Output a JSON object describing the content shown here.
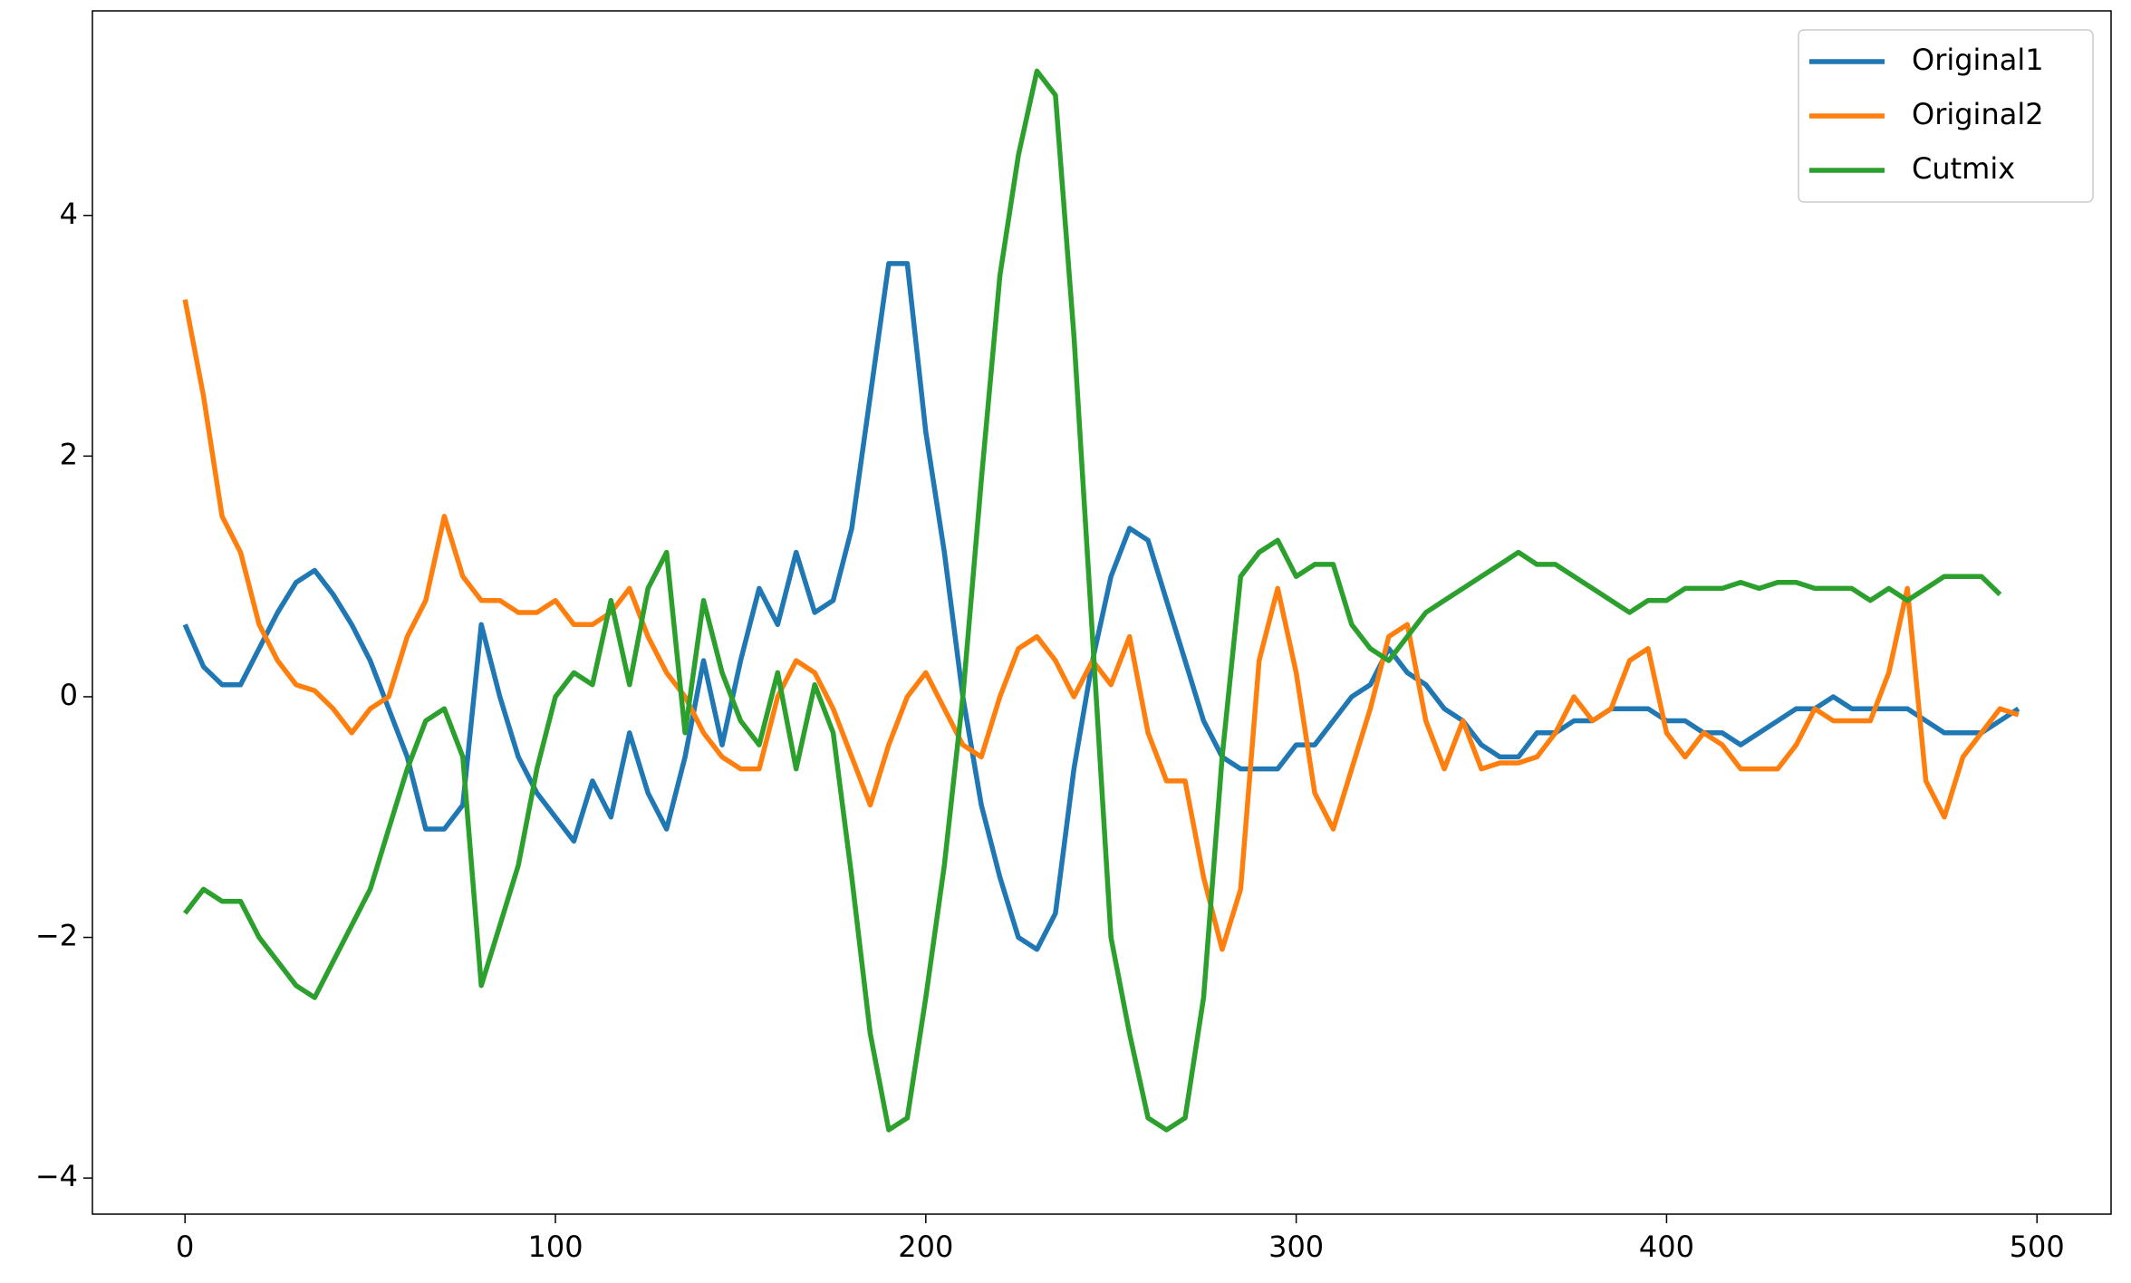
{
  "chart_data": {
    "type": "line",
    "x": [
      0,
      5,
      10,
      15,
      20,
      25,
      30,
      35,
      40,
      45,
      50,
      55,
      60,
      65,
      70,
      75,
      80,
      85,
      90,
      95,
      100,
      105,
      110,
      115,
      120,
      125,
      130,
      135,
      140,
      145,
      150,
      155,
      160,
      165,
      170,
      175,
      180,
      185,
      190,
      195,
      200,
      205,
      210,
      215,
      220,
      225,
      230,
      235,
      240,
      245,
      250,
      255,
      260,
      265,
      270,
      275,
      280,
      285,
      290,
      295,
      300,
      305,
      310,
      315,
      320,
      325,
      330,
      335,
      340,
      345,
      350,
      355,
      360,
      365,
      370,
      375,
      380,
      385,
      390,
      395,
      400,
      405,
      410,
      415,
      420,
      425,
      430,
      435,
      440,
      445,
      450,
      455,
      460,
      465,
      470,
      475,
      480,
      485,
      490,
      495
    ],
    "series": [
      {
        "name": "Original1",
        "color": "#1f77b4",
        "values": [
          0.6,
          0.25,
          0.1,
          0.1,
          0.4,
          0.7,
          0.95,
          1.05,
          0.85,
          0.6,
          0.3,
          -0.1,
          -0.5,
          -1.1,
          -1.1,
          -0.9,
          0.6,
          0.0,
          -0.5,
          -0.8,
          -1.0,
          -1.2,
          -0.7,
          -1.0,
          -0.3,
          -0.8,
          -1.1,
          -0.5,
          0.3,
          -0.4,
          0.3,
          0.9,
          0.6,
          1.2,
          0.7,
          0.8,
          1.4,
          2.5,
          3.6,
          3.6,
          2.2,
          1.2,
          0.0,
          -0.9,
          -1.5,
          -2.0,
          -2.1,
          -1.8,
          -0.6,
          0.3,
          1.0,
          1.4,
          1.3,
          0.8,
          0.3,
          -0.2,
          -0.5,
          -0.6,
          -0.6,
          -0.6,
          -0.4,
          -0.4,
          -0.2,
          0.0,
          0.1,
          0.4,
          0.2,
          0.1,
          -0.1,
          -0.2,
          -0.4,
          -0.5,
          -0.5,
          -0.3,
          -0.3,
          -0.2,
          -0.2,
          -0.1,
          -0.1,
          -0.1,
          -0.2,
          -0.2,
          -0.3,
          -0.3,
          -0.4,
          -0.3,
          -0.2,
          -0.1,
          -0.1,
          0.0,
          -0.1,
          -0.1,
          -0.1,
          -0.1,
          -0.2,
          -0.3,
          -0.3,
          -0.3,
          -0.2,
          -0.1
        ]
      },
      {
        "name": "Original2",
        "color": "#ff7f0e",
        "values": [
          3.3,
          2.5,
          1.5,
          1.2,
          0.6,
          0.3,
          0.1,
          0.05,
          -0.1,
          -0.3,
          -0.1,
          0.0,
          0.5,
          0.8,
          1.5,
          1.0,
          0.8,
          0.8,
          0.7,
          0.7,
          0.8,
          0.6,
          0.6,
          0.7,
          0.9,
          0.5,
          0.2,
          0.0,
          -0.3,
          -0.5,
          -0.6,
          -0.6,
          0.0,
          0.3,
          0.2,
          -0.1,
          -0.5,
          -0.9,
          -0.4,
          0.0,
          0.2,
          -0.1,
          -0.4,
          -0.5,
          0.0,
          0.4,
          0.5,
          0.3,
          0.0,
          0.3,
          0.1,
          0.5,
          -0.3,
          -0.7,
          -0.7,
          -1.5,
          -2.1,
          -1.6,
          0.3,
          0.9,
          0.2,
          -0.8,
          -1.1,
          -0.6,
          -0.1,
          0.5,
          0.6,
          -0.2,
          -0.6,
          -0.2,
          -0.6,
          -0.55,
          -0.55,
          -0.5,
          -0.3,
          0.0,
          -0.2,
          -0.1,
          0.3,
          0.4,
          -0.3,
          -0.5,
          -0.3,
          -0.4,
          -0.6,
          -0.6,
          -0.6,
          -0.4,
          -0.1,
          -0.2,
          -0.2,
          -0.2,
          0.2,
          0.9,
          -0.7,
          -1.0,
          -0.5,
          -0.3,
          -0.1,
          -0.15
        ]
      },
      {
        "name": "Cutmix",
        "color": "#2ca02c",
        "values": [
          -1.8,
          -1.6,
          -1.7,
          -1.7,
          -2.0,
          -2.2,
          -2.4,
          -2.5,
          -2.2,
          -1.9,
          -1.6,
          -1.1,
          -0.6,
          -0.2,
          -0.1,
          -0.5,
          -2.4,
          -1.9,
          -1.4,
          -0.6,
          0.0,
          0.2,
          0.1,
          0.8,
          0.1,
          0.9,
          1.2,
          -0.3,
          0.8,
          0.2,
          -0.2,
          -0.4,
          0.2,
          -0.6,
          0.1,
          -0.3,
          -1.5,
          -2.8,
          -3.6,
          -3.5,
          -2.5,
          -1.4,
          0.0,
          1.8,
          3.5,
          4.5,
          5.2,
          5.0,
          3.0,
          0.5,
          -2.0,
          -2.8,
          -3.5,
          -3.6,
          -3.5,
          -2.5,
          -0.5,
          1.0,
          1.2,
          1.3,
          1.0,
          1.1,
          1.1,
          0.6,
          0.4,
          0.3,
          0.5,
          0.7,
          0.8,
          0.9,
          1.0,
          1.1,
          1.2,
          1.1,
          1.1,
          1.0,
          0.9,
          0.8,
          0.7,
          0.8,
          0.8,
          0.9,
          0.9,
          0.9,
          0.95,
          0.9,
          0.95,
          0.95,
          0.9,
          0.9,
          0.9,
          0.8,
          0.9,
          0.8,
          0.9,
          1.0,
          1.0,
          1.0,
          0.85,
          null
        ]
      }
    ],
    "xlim": [
      -25,
      520
    ],
    "ylim": [
      -4.3,
      5.7
    ],
    "xticks": [
      0,
      100,
      200,
      300,
      400,
      500
    ],
    "yticks": [
      {
        "value": -4,
        "label": "−4"
      },
      {
        "value": -2,
        "label": "−2"
      },
      0,
      2,
      4
    ],
    "legend": "upper right"
  }
}
